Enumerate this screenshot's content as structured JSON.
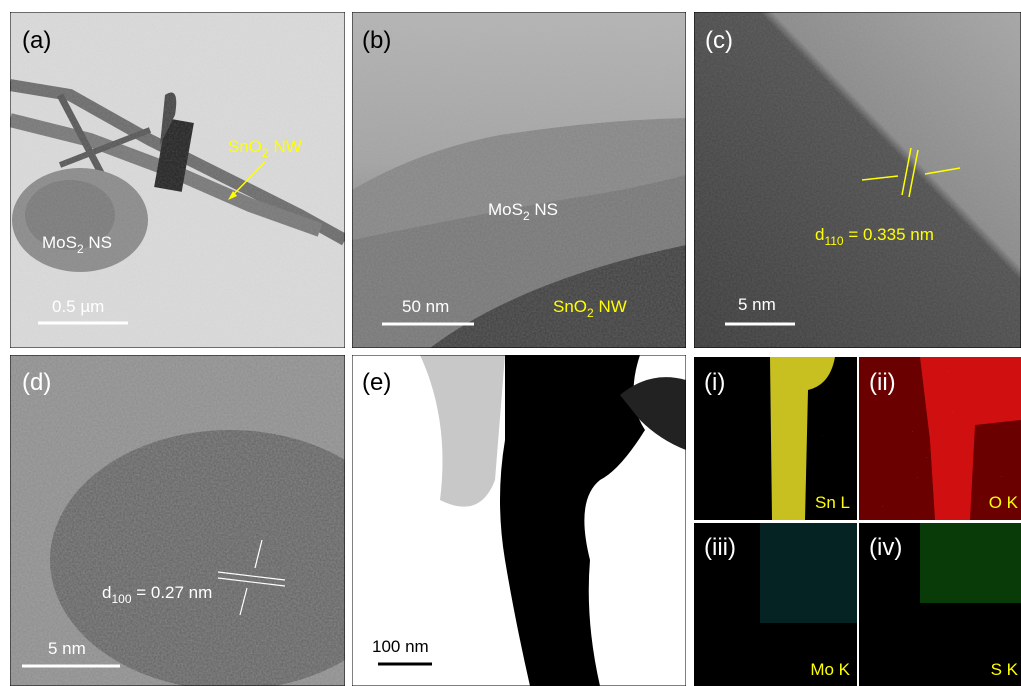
{
  "a": {
    "label": "(a)",
    "sno2": {
      "t": "SnO",
      "s": "2",
      "r": " NW"
    },
    "mos2": {
      "t": "MoS",
      "s": "2",
      "r": " NS"
    },
    "scale": "0.5 µm"
  },
  "b": {
    "label": "(b)",
    "mos2": {
      "t": "MoS",
      "s": "2",
      "r": " NS"
    },
    "sno2": {
      "t": "SnO",
      "s": "2",
      "r": " NW"
    },
    "scale": "50 nm"
  },
  "c": {
    "label": "(c)",
    "spacing": {
      "t": "d",
      "s": "110",
      "r": " = 0.335 nm"
    },
    "scale": "5 nm"
  },
  "d": {
    "label": "(d)",
    "spacing": {
      "t": "d",
      "s": "100",
      "r": " = 0.27 nm"
    },
    "scale": "5 nm"
  },
  "e": {
    "label": "(e)",
    "scale": "100 nm"
  },
  "maps": [
    {
      "label": "(i)",
      "element": "Sn L"
    },
    {
      "label": "(ii)",
      "element": "O K"
    },
    {
      "label": "(iii)",
      "element": "Mo K"
    },
    {
      "label": "(iv)",
      "element": "S K"
    }
  ]
}
